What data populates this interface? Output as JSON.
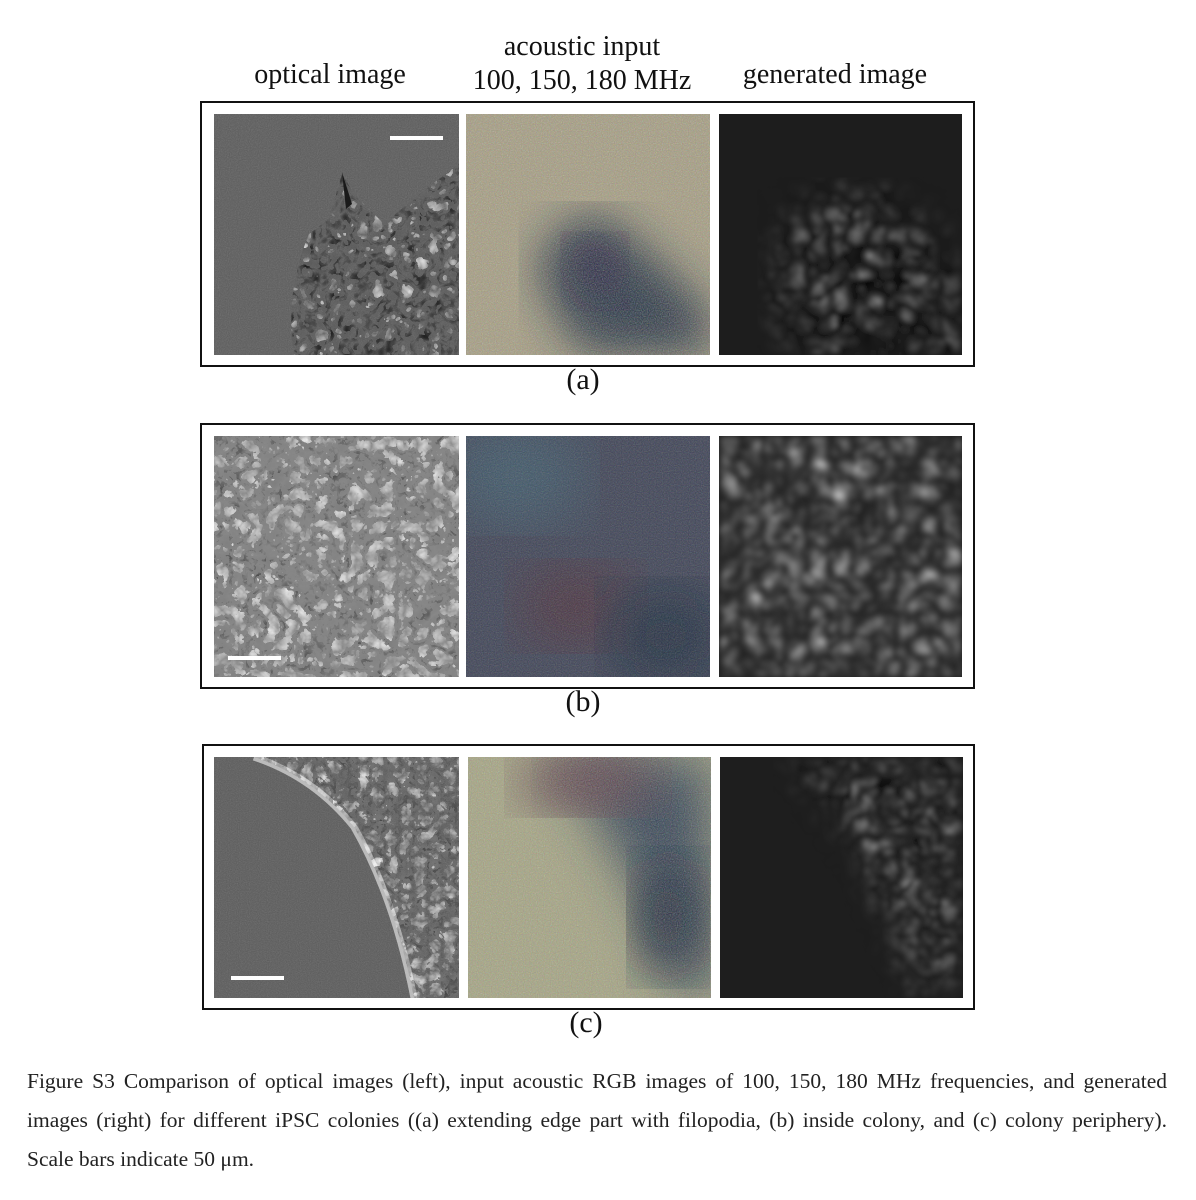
{
  "headers": {
    "optical": "optical image",
    "acoustic_line1": "acoustic input",
    "acoustic_line2": "100, 150, 180 MHz",
    "generated": "generated image"
  },
  "rows": [
    {
      "label": "(a)",
      "description": "extending edge part with filopodia"
    },
    {
      "label": "(b)",
      "description": "inside colony"
    },
    {
      "label": "(c)",
      "description": "colony periphery"
    }
  ],
  "caption": "Figure S3 Comparison of optical images (left), input acoustic RGB images of 100, 150, 180 MHz frequencies, and generated images (right) for different iPSC colonies ((a) extending edge part with filopodia, (b) inside colony, and (c) colony periphery).　Scale bars indicate 50 μm."
}
